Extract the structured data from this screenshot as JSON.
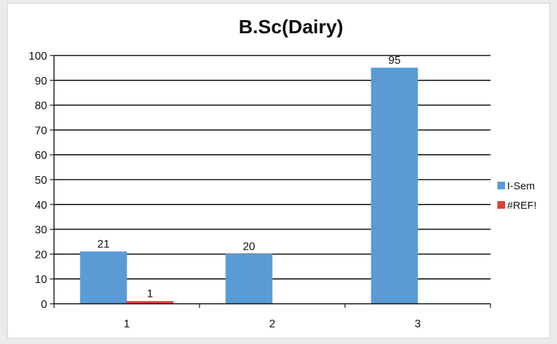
{
  "chart_data": {
    "type": "bar",
    "title": "B.Sc(Dairy)",
    "xlabel": "",
    "ylabel": "",
    "ylim": [
      0,
      100
    ],
    "yticks": [
      0,
      10,
      20,
      30,
      40,
      50,
      60,
      70,
      80,
      90,
      100
    ],
    "categories": [
      "1",
      "2",
      "3"
    ],
    "series": [
      {
        "name": "I-Sem",
        "values": [
          21,
          20,
          95
        ],
        "color": "#5b9bd5"
      },
      {
        "name": "#REF!",
        "values": [
          1,
          null,
          null
        ],
        "color": "#d9423a"
      }
    ],
    "grid": true,
    "legend": "right"
  }
}
